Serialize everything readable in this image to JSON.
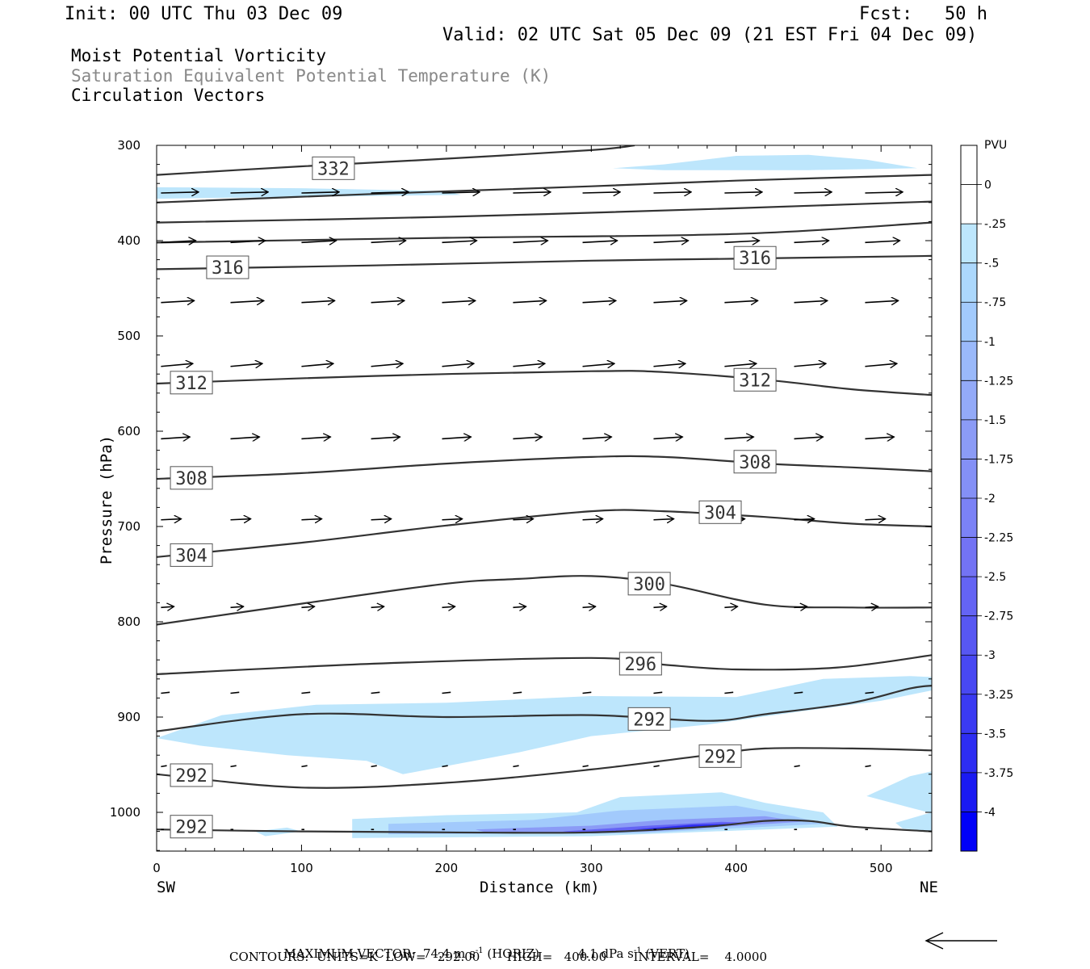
{
  "header": {
    "init": "Init: 00 UTC Thu 03 Dec 09",
    "fcst": "Fcst:   50 h",
    "valid": "Valid: 02 UTC Sat 05 Dec 09 (21 EST Fri 04 Dec 09)",
    "field1": "Moist Potential Vorticity",
    "field2": "Saturation Equivalent Potential Temperature (K)",
    "field3": "Circulation Vectors",
    "field2_color": "#888888"
  },
  "footer": {
    "max_vector_label": "MAXIMUM VECTOR:",
    "horiz_value": "74.4",
    "horiz_units": "m s",
    "horiz_tag": "(HORIZ)",
    "vert_value": "4.1",
    "vert_units": "dPa s",
    "vert_tag": "(VERT)",
    "exponent": "-1",
    "contours_line": "CONTOURS:  UNITS=K  LOW=   292.00       HIGH=   400.00       INTERVAL=    4.0000"
  },
  "chart_data": {
    "type": "contour-cross-section",
    "xlabel": "Distance (km)",
    "ylabel": "Pressure (hPa)",
    "xlim": [
      0,
      535
    ],
    "ylim": [
      1040,
      300
    ],
    "x_ticks": [
      0,
      100,
      200,
      300,
      400,
      500
    ],
    "y_ticks": [
      300,
      400,
      500,
      600,
      700,
      800,
      900,
      1000
    ],
    "left_endpoint": "SW",
    "right_endpoint": "NE",
    "colorbar": {
      "units": "PVU",
      "labels": [
        "0",
        "-.25",
        "-.5",
        "-.75",
        "-1",
        "-1.25",
        "-1.5",
        "-1.75",
        "-2",
        "-2.25",
        "-2.5",
        "-2.75",
        "-3",
        "-3.25",
        "-3.5",
        "-3.75",
        "-4"
      ],
      "colors": [
        "#ffffff",
        "#ffffff",
        "#bde6fc",
        "#acd8fc",
        "#a2cafc",
        "#9ab9fa",
        "#93aaf8",
        "#8b9bf6",
        "#8490f6",
        "#7b82f6",
        "#7373f4",
        "#6464f4",
        "#5757f2",
        "#4848f2",
        "#3a3af2",
        "#2d2df2",
        "#1a1af2",
        "#0000f8"
      ]
    },
    "theta_e_contours": [
      {
        "label": "332",
        "points": [
          [
            0,
            331
          ],
          [
            100,
            322
          ],
          [
            200,
            314
          ],
          [
            300,
            305
          ],
          [
            330,
            300
          ]
        ],
        "label_at": [
          122,
          324
        ]
      },
      {
        "label": "",
        "points": [
          [
            0,
            360
          ],
          [
            150,
            351
          ],
          [
            300,
            343
          ],
          [
            400,
            337
          ],
          [
            535,
            331
          ]
        ]
      },
      {
        "label": "",
        "points": [
          [
            0,
            381
          ],
          [
            200,
            375
          ],
          [
            400,
            366
          ],
          [
            535,
            359
          ]
        ]
      },
      {
        "label": "",
        "points": [
          [
            0,
            402
          ],
          [
            200,
            397
          ],
          [
            400,
            393
          ],
          [
            535,
            381
          ]
        ]
      },
      {
        "label": "316",
        "points": [
          [
            0,
            430
          ],
          [
            150,
            426
          ],
          [
            300,
            421
          ],
          [
            400,
            419
          ],
          [
            535,
            416
          ]
        ],
        "label_at": [
          49,
          428
        ],
        "label_at2": [
          413,
          418
        ]
      },
      {
        "label": "312",
        "points": [
          [
            0,
            550
          ],
          [
            150,
            542
          ],
          [
            300,
            537
          ],
          [
            350,
            538
          ],
          [
            420,
            546
          ],
          [
            480,
            556
          ],
          [
            535,
            562
          ]
        ],
        "label_at": [
          24,
          549
        ],
        "label_at2": [
          413,
          546
        ]
      },
      {
        "label": "308",
        "points": [
          [
            0,
            650
          ],
          [
            100,
            644
          ],
          [
            200,
            634
          ],
          [
            300,
            627
          ],
          [
            350,
            627
          ],
          [
            420,
            634
          ],
          [
            480,
            638
          ],
          [
            535,
            642
          ]
        ],
        "label_at": [
          24,
          649
        ],
        "label_at2": [
          413,
          632
        ]
      },
      {
        "label": "304",
        "points": [
          [
            0,
            732
          ],
          [
            100,
            717
          ],
          [
            200,
            699
          ],
          [
            300,
            684
          ],
          [
            350,
            684
          ],
          [
            420,
            690
          ],
          [
            480,
            697
          ],
          [
            535,
            700
          ]
        ],
        "label_at": [
          24,
          730
        ],
        "label_at2": [
          389,
          685
        ]
      },
      {
        "label": "300",
        "points": [
          [
            0,
            803
          ],
          [
            100,
            781
          ],
          [
            200,
            760
          ],
          [
            250,
            755
          ],
          [
            300,
            752
          ],
          [
            350,
            760
          ],
          [
            420,
            782
          ],
          [
            480,
            785
          ],
          [
            535,
            785
          ]
        ],
        "label_at": [
          340,
          760
        ]
      },
      {
        "label": "296",
        "points": [
          [
            0,
            855
          ],
          [
            150,
            844
          ],
          [
            300,
            838
          ],
          [
            350,
            845
          ],
          [
            400,
            850
          ],
          [
            470,
            848
          ],
          [
            535,
            835
          ]
        ],
        "label_at": [
          334,
          844
        ]
      },
      {
        "label": "292",
        "points": [
          [
            0,
            915
          ],
          [
            100,
            897
          ],
          [
            200,
            900
          ],
          [
            300,
            898
          ],
          [
            380,
            904
          ],
          [
            420,
            897
          ],
          [
            480,
            885
          ],
          [
            520,
            870
          ],
          [
            535,
            867
          ]
        ],
        "label_at": [
          340,
          902
        ]
      },
      {
        "label": "292",
        "points": [
          [
            0,
            960
          ],
          [
            100,
            974
          ],
          [
            200,
            969
          ],
          [
            300,
            955
          ],
          [
            380,
            940
          ],
          [
            420,
            933
          ],
          [
            480,
            933
          ],
          [
            535,
            935
          ]
        ],
        "label_at": [
          389,
          941
        ],
        "label_at2": [
          24,
          961
        ]
      },
      {
        "label": "292",
        "points": [
          [
            0,
            1018
          ],
          [
            100,
            1020
          ],
          [
            200,
            1021
          ],
          [
            300,
            1021
          ],
          [
            380,
            1015
          ],
          [
            420,
            1009
          ],
          [
            450,
            1009
          ],
          [
            480,
            1015
          ],
          [
            535,
            1020
          ]
        ],
        "label_at": [
          24,
          1015
        ]
      }
    ],
    "mpv_shading": [
      {
        "level": "-.25",
        "color": "#bde6fc",
        "polygon": [
          [
            0,
            344
          ],
          [
            100,
            345
          ],
          [
            200,
            348
          ],
          [
            210,
            352
          ],
          [
            100,
            354
          ],
          [
            0,
            356
          ]
        ]
      },
      {
        "level": "-.25",
        "color": "#bde6fc",
        "polygon": [
          [
            315,
            324
          ],
          [
            350,
            320
          ],
          [
            400,
            311
          ],
          [
            450,
            310
          ],
          [
            490,
            315
          ],
          [
            525,
            324
          ],
          [
            450,
            326
          ],
          [
            350,
            326
          ]
        ]
      },
      {
        "level": "-.25",
        "color": "#bde6fc",
        "polygon": [
          [
            0,
            922
          ],
          [
            45,
            898
          ],
          [
            110,
            887
          ],
          [
            200,
            885
          ],
          [
            300,
            878
          ],
          [
            400,
            879
          ],
          [
            460,
            860
          ],
          [
            520,
            857
          ],
          [
            535,
            858
          ],
          [
            535,
            872
          ],
          [
            500,
            883
          ],
          [
            440,
            895
          ],
          [
            380,
            908
          ],
          [
            300,
            920
          ],
          [
            250,
            937
          ],
          [
            170,
            960
          ],
          [
            145,
            946
          ],
          [
            90,
            940
          ],
          [
            30,
            930
          ]
        ]
      },
      {
        "level": "-.25",
        "color": "#bde6fc",
        "polygon": [
          [
            490,
            983
          ],
          [
            520,
            962
          ],
          [
            535,
            957
          ],
          [
            535,
            1001
          ],
          [
            520,
            995
          ]
        ]
      },
      {
        "level": "-.25",
        "color": "#bde6fc",
        "polygon": [
          [
            510,
            1011
          ],
          [
            535,
            1000
          ],
          [
            535,
            1020
          ],
          [
            515,
            1017
          ]
        ]
      },
      {
        "level": "-.25",
        "color": "#bde6fc",
        "polygon": [
          [
            135,
            1007
          ],
          [
            200,
            1003
          ],
          [
            290,
            1000
          ],
          [
            320,
            984
          ],
          [
            390,
            979
          ],
          [
            420,
            990
          ],
          [
            460,
            1000
          ],
          [
            470,
            1015
          ],
          [
            300,
            1025
          ],
          [
            135,
            1027
          ]
        ]
      },
      {
        "level": "-.25",
        "color": "#bde6fc",
        "polygon": [
          [
            68,
            1020
          ],
          [
            90,
            1016
          ],
          [
            100,
            1020
          ],
          [
            75,
            1025
          ]
        ]
      },
      {
        "level": "-.5",
        "color": "#a2cafc",
        "polygon": [
          [
            160,
            1012
          ],
          [
            260,
            1008
          ],
          [
            320,
            998
          ],
          [
            400,
            993
          ],
          [
            440,
            1004
          ],
          [
            460,
            1012
          ],
          [
            330,
            1022
          ],
          [
            160,
            1023
          ]
        ]
      },
      {
        "level": "-1",
        "color": "#8b9bf6",
        "polygon": [
          [
            220,
            1018
          ],
          [
            300,
            1014
          ],
          [
            350,
            1008
          ],
          [
            420,
            1004
          ],
          [
            445,
            1010
          ],
          [
            340,
            1020
          ],
          [
            230,
            1022
          ]
        ]
      },
      {
        "level": "-2",
        "color": "#6464f4",
        "polygon": [
          [
            280,
            1020
          ],
          [
            340,
            1014
          ],
          [
            390,
            1010
          ],
          [
            410,
            1011
          ],
          [
            360,
            1018
          ],
          [
            300,
            1022
          ]
        ]
      },
      {
        "level": "-3",
        "color": "#2d2df2",
        "polygon": [
          [
            330,
            1018
          ],
          [
            370,
            1013
          ],
          [
            395,
            1012
          ],
          [
            370,
            1017
          ]
        ]
      }
    ],
    "vector_rows": [
      {
        "p": 350,
        "dx_km": 26,
        "dp": -1
      },
      {
        "p": 402,
        "dx_km": 24,
        "dp": -2
      },
      {
        "p": 465,
        "dx_km": 23,
        "dp": -2
      },
      {
        "p": 532,
        "dx_km": 22,
        "dp": -3
      },
      {
        "p": 608,
        "dx_km": 20,
        "dp": -2
      },
      {
        "p": 693,
        "dx_km": 14,
        "dp": -1
      },
      {
        "p": 785,
        "dx_km": 9,
        "dp": -1
      },
      {
        "p": 875,
        "dx_km": 6,
        "dp": -1
      },
      {
        "p": 952,
        "dx_km": 4,
        "dp": -1
      },
      {
        "p": 1018,
        "dx_km": 2,
        "dp": 0
      }
    ],
    "vector_x": [
      3,
      51,
      100,
      148,
      197,
      246,
      294,
      343,
      392,
      440,
      489
    ],
    "reference_vector": {
      "direction": "left"
    }
  }
}
